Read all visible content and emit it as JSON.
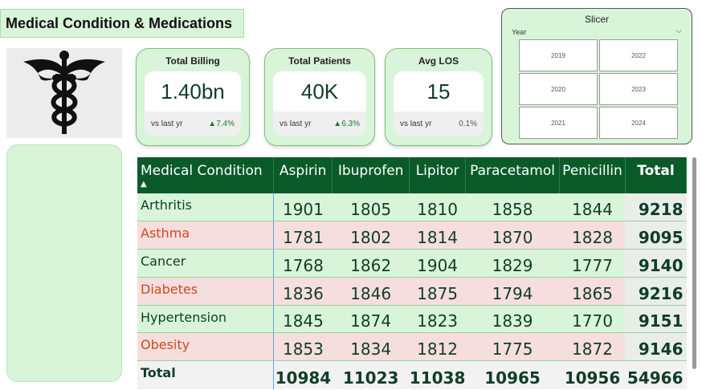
{
  "title": "Medical Condition & Medications",
  "logo_icon": "caduceus-icon",
  "kpis": [
    {
      "title": "Total Billing",
      "value": "1.40bn",
      "vs_label": "vs last yr",
      "delta": "7.4%",
      "delta_dir": "up"
    },
    {
      "title": "Total Patients",
      "value": "40K",
      "vs_label": "vs last yr",
      "delta": "6.3%",
      "delta_dir": "up"
    },
    {
      "title": "Avg LOS",
      "value": "15",
      "vs_label": "vs last yr",
      "delta": "0.1%",
      "delta_dir": "flat"
    }
  ],
  "slicer": {
    "title": "Slicer",
    "field": "Year",
    "options": [
      "2019",
      "2022",
      "2020",
      "2023",
      "2021",
      "2024"
    ]
  },
  "matrix": {
    "headers": [
      "Medical Condition",
      "Aspirin",
      "Ibuprofen",
      "Lipitor",
      "Paracetamol",
      "Penicillin",
      "Total"
    ],
    "rows": [
      {
        "condition": "Arthritis",
        "values": [
          "1901",
          "1805",
          "1810",
          "1858",
          "1844"
        ],
        "total": "9218"
      },
      {
        "condition": "Asthma",
        "values": [
          "1781",
          "1802",
          "1814",
          "1870",
          "1828"
        ],
        "total": "9095"
      },
      {
        "condition": "Cancer",
        "values": [
          "1768",
          "1862",
          "1904",
          "1829",
          "1777"
        ],
        "total": "9140"
      },
      {
        "condition": "Diabetes",
        "values": [
          "1836",
          "1846",
          "1875",
          "1794",
          "1865"
        ],
        "total": "9216"
      },
      {
        "condition": "Hypertension",
        "values": [
          "1845",
          "1874",
          "1823",
          "1839",
          "1770"
        ],
        "total": "9151"
      },
      {
        "condition": "Obesity",
        "values": [
          "1853",
          "1834",
          "1812",
          "1775",
          "1872"
        ],
        "total": "9146"
      }
    ],
    "totals": {
      "label": "Total",
      "values": [
        "10984",
        "11023",
        "11038",
        "10965",
        "10956"
      ],
      "grand": "54966"
    }
  },
  "colors": {
    "accent": "#0b5b2a",
    "panel": "#d9f5d9",
    "alt_row": "#f7dede",
    "alt_text": "#cc4a1c"
  }
}
